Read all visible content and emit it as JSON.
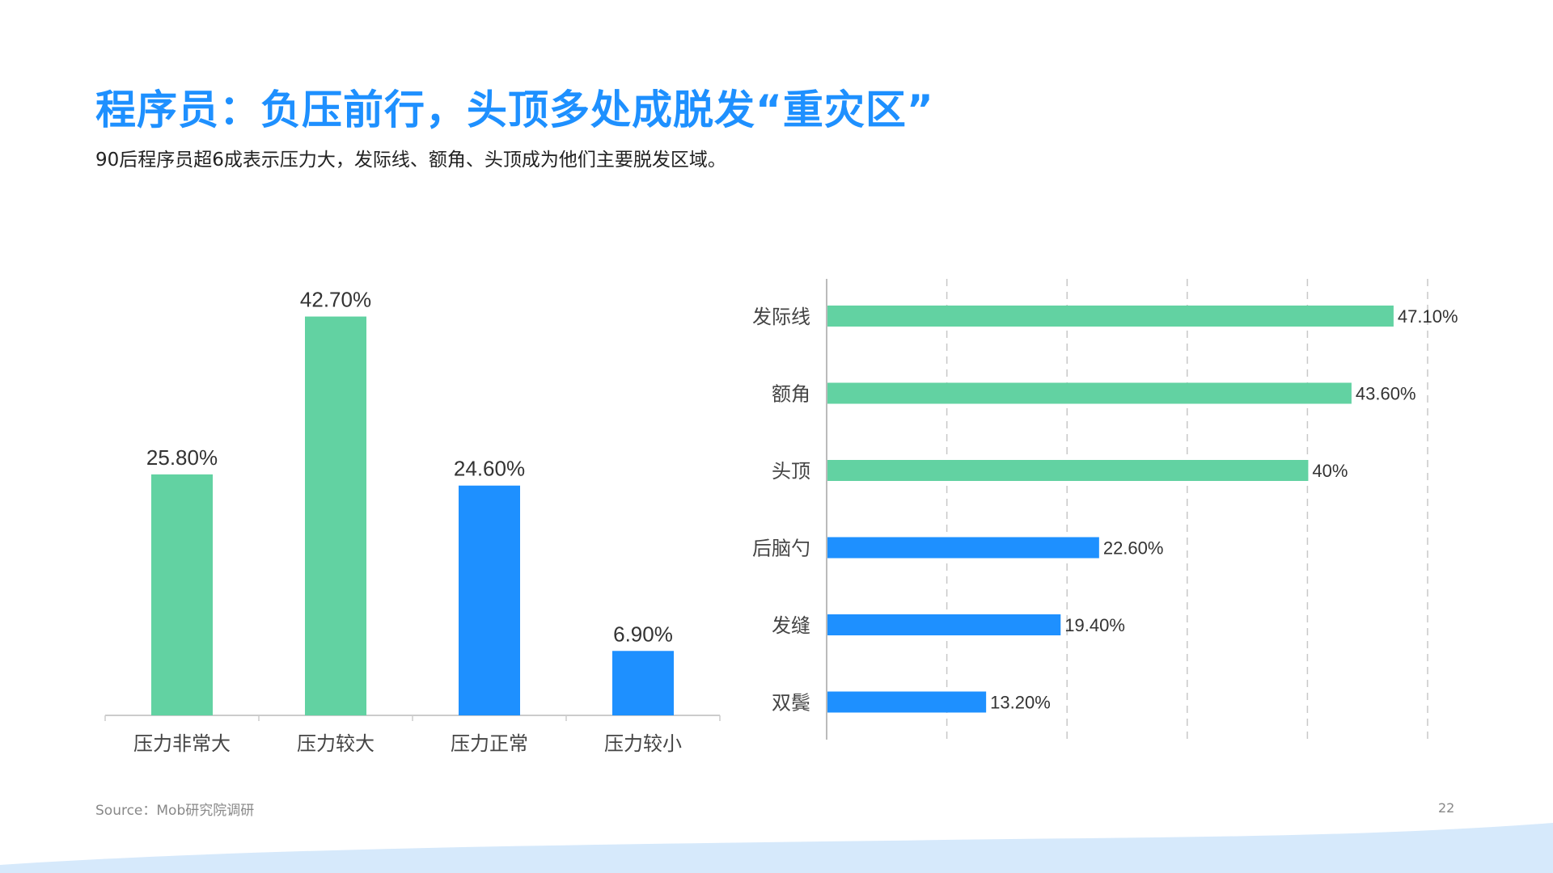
{
  "header": {
    "title": "程序员：负压前行，头顶多处成脱发“重灾区”",
    "subtitle": "90后程序员超6成表示压力大，发际线、额角、头顶成为他们主要脱发区域。"
  },
  "footer": {
    "source": "Source：Mob研究院调研",
    "page_number": "22"
  },
  "colors": {
    "accent": "#1E90FF",
    "green": "#62D2A2",
    "blue": "#1E90FF",
    "wave": "#D6E9FB"
  },
  "chart_data": [
    {
      "type": "bar",
      "orientation": "vertical",
      "categories": [
        "压力非常大",
        "压力较大",
        "压力正常",
        "压力较小"
      ],
      "values": [
        25.8,
        42.7,
        24.6,
        6.9
      ],
      "value_labels": [
        "25.80%",
        "42.70%",
        "24.60%",
        "6.90%"
      ],
      "bar_colors": [
        "#62D2A2",
        "#62D2A2",
        "#1E90FF",
        "#1E90FF"
      ],
      "ylim": [
        0,
        45
      ],
      "grid": false
    },
    {
      "type": "bar",
      "orientation": "horizontal",
      "categories": [
        "发际线",
        "额角",
        "头顶",
        "后脑勺",
        "发缝",
        "双鬓"
      ],
      "values": [
        47.1,
        43.6,
        40.0,
        22.6,
        19.4,
        13.2
      ],
      "value_labels": [
        "47.10%",
        "43.60%",
        "40%",
        "22.60%",
        "19.40%",
        "13.20%"
      ],
      "bar_colors": [
        "#62D2A2",
        "#62D2A2",
        "#62D2A2",
        "#1E90FF",
        "#1E90FF",
        "#1E90FF"
      ],
      "xlim": [
        0,
        50
      ],
      "grid": true,
      "grid_style": "dashed vertical"
    }
  ]
}
